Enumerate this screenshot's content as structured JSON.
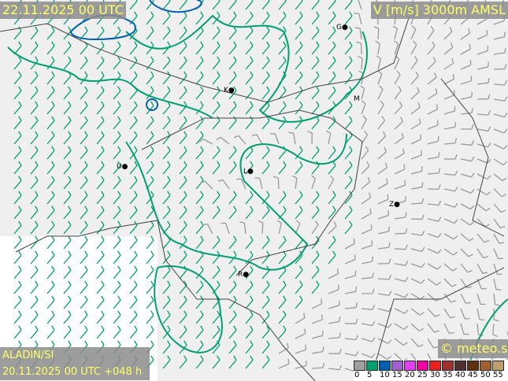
{
  "header": {
    "valid_time": "22.11.2025 00 UTC",
    "variable": "V [m/s] 3000m AMSL"
  },
  "footer": {
    "model": "ALADIN/SI",
    "run": "20.11.2025 00 UTC +048 h",
    "brand": "© meteo.si"
  },
  "legend": {
    "ticks": [
      "0",
      "5",
      "10",
      "15",
      "20",
      "25",
      "30",
      "35",
      "40",
      "45",
      "50",
      "55"
    ],
    "colors": [
      "#a0a0a0",
      "#00a070",
      "#0060b0",
      "#a060d0",
      "#e040f0",
      "#f000a0",
      "#e82020",
      "#a03030",
      "#503030",
      "#603010",
      "#a06030",
      "#c0a070"
    ]
  },
  "cities": [
    {
      "label": "G"
    },
    {
      "label": "K"
    },
    {
      "label": "M"
    },
    {
      "label": "U"
    },
    {
      "label": "L"
    },
    {
      "label": "Z"
    },
    {
      "label": "R"
    }
  ],
  "map": {
    "background": "#efefef",
    "contour_5": "#00a070",
    "contour_10": "#0060b0",
    "barb_strong": "#00a070",
    "barb_weak": "#999999"
  }
}
